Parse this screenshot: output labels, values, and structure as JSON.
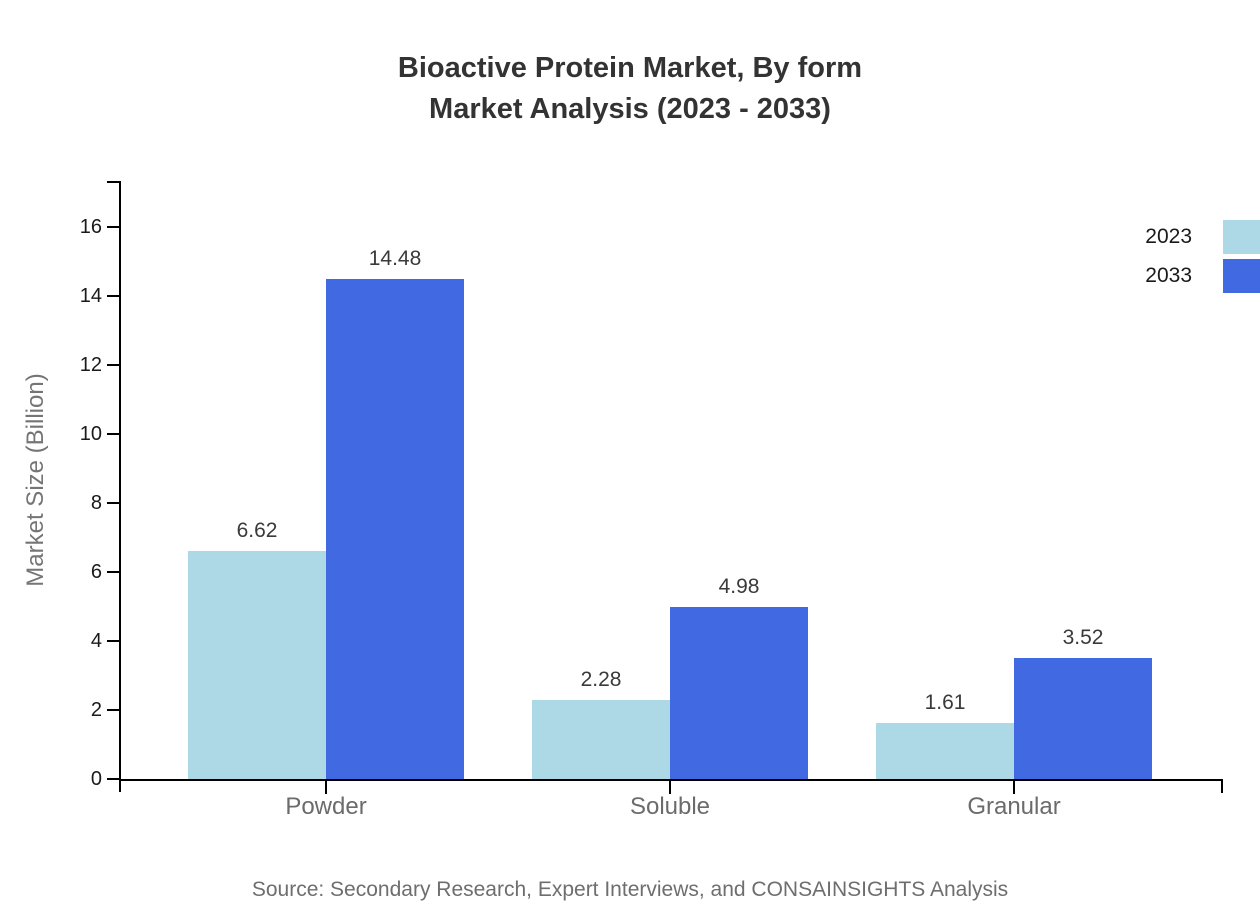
{
  "chart_data": {
    "type": "bar",
    "title": "Bioactive Protein Market, By form\nMarket Analysis (2023 - 2033)",
    "title_lines": [
      "Bioactive Protein Market, By form",
      "Market Analysis (2023 - 2033)"
    ],
    "categories": [
      "Powder",
      "Soluble",
      "Granular"
    ],
    "series": [
      {
        "name": "2023",
        "color": "#ADD8E6",
        "values": [
          6.62,
          2.28,
          1.61
        ]
      },
      {
        "name": "2033",
        "color": "#4169E1",
        "values": [
          14.48,
          4.98,
          3.52
        ]
      }
    ],
    "xlabel": "",
    "ylabel": "Market Size (Billion)",
    "yticks": [
      0,
      2,
      4,
      6,
      8,
      10,
      12,
      14,
      16
    ],
    "ylim": [
      0,
      17.4
    ],
    "grid": false,
    "legend_position": "top-right",
    "value_labels": true,
    "axis_color": "#000000",
    "source": "Source: Secondary Research, Expert Interviews, and CONSAINSIGHTS Analysis"
  }
}
